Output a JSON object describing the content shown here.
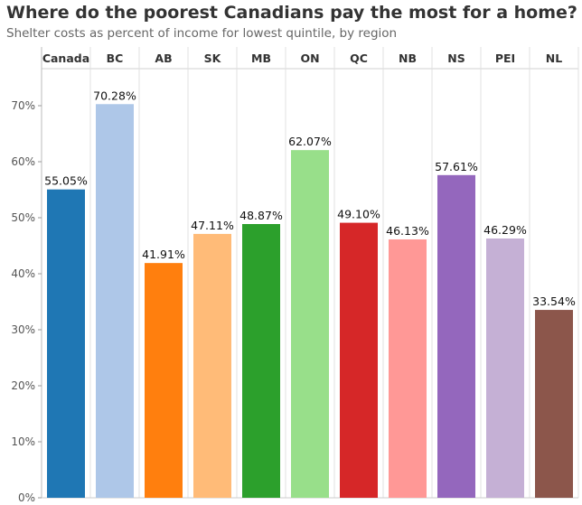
{
  "chart_data": {
    "type": "bar",
    "title": "Where do the poorest Canadians pay the most for a home?",
    "subtitle": "Shelter costs as percent of income for lowest quintile, by region",
    "xlabel": "",
    "ylabel": "",
    "categories": [
      "Canada",
      "BC",
      "AB",
      "SK",
      "MB",
      "ON",
      "QC",
      "NB",
      "NS",
      "PEI",
      "NL"
    ],
    "values": [
      55.05,
      70.28,
      41.91,
      47.11,
      48.87,
      62.07,
      49.1,
      46.13,
      57.61,
      46.29,
      33.54
    ],
    "value_labels": [
      "55.05%",
      "70.28%",
      "41.91%",
      "47.11%",
      "48.87%",
      "62.07%",
      "49.10%",
      "46.13%",
      "57.61%",
      "46.29%",
      "33.54%"
    ],
    "colors": [
      "#1f77b4",
      "#aec7e8",
      "#ff7f0e",
      "#ffbb78",
      "#2ca02c",
      "#98df8a",
      "#d62728",
      "#ff9896",
      "#9467bd",
      "#c5b0d5",
      "#8c564b"
    ],
    "ylim": [
      0,
      70
    ],
    "yticks": [
      0,
      10,
      20,
      30,
      40,
      50,
      60,
      70
    ],
    "ytick_labels": [
      "0%",
      "10%",
      "20%",
      "30%",
      "40%",
      "50%",
      "60%",
      "70%"
    ],
    "grid": false,
    "legend": "none"
  }
}
